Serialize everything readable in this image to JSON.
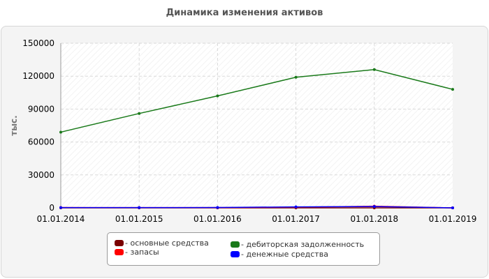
{
  "chart_data": {
    "type": "line",
    "title": "Динамика изменения активов",
    "ylabel": "тыс.",
    "xlabel": "",
    "x": [
      "01.01.2014",
      "01.01.2015",
      "01.01.2016",
      "01.01.2017",
      "01.01.2018",
      "01.01.2019"
    ],
    "ylim": [
      0,
      150000
    ],
    "yticks": [
      "0",
      "30000",
      "60000",
      "90000",
      "120000",
      "150000"
    ],
    "grid": true,
    "legend_position": "bottom",
    "series": [
      {
        "name": "- основные средства",
        "color": "#7a0000",
        "values": [
          0,
          0,
          0,
          0,
          0,
          0
        ]
      },
      {
        "name": "- запасы",
        "color": "#ff0000",
        "values": [
          300,
          200,
          200,
          600,
          1500,
          0
        ]
      },
      {
        "name": "- дебиторская задолженность",
        "color": "#1a7a1a",
        "values": [
          69000,
          86000,
          102000,
          119000,
          126000,
          108000
        ]
      },
      {
        "name": "- денежные средства",
        "color": "#0000ff",
        "values": [
          200,
          200,
          300,
          900,
          1200,
          0
        ]
      }
    ]
  }
}
